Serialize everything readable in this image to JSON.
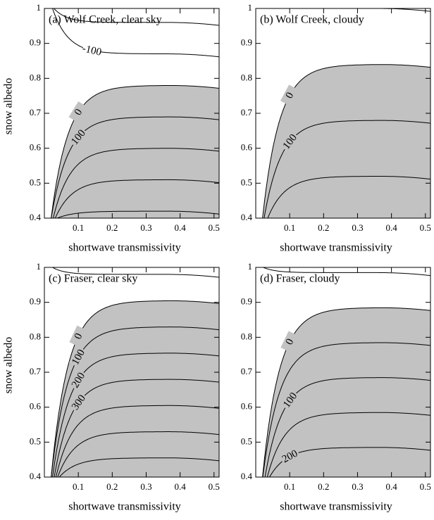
{
  "chart_data": [
    {
      "type": "contour",
      "title": "(a) Wolf Creek, clear sky",
      "x_label": "shortwave transmissivity",
      "y_label": "snow albedo",
      "xlim": [
        0,
        0.515
      ],
      "ylim": [
        0.4,
        1
      ],
      "xticks": [
        0.1,
        0.2,
        0.3,
        0.4,
        0.5
      ],
      "yticks": [
        0.4,
        0.5,
        0.6,
        0.7,
        0.8,
        0.9,
        1
      ],
      "contours": [
        -300,
        -200,
        -100,
        0,
        100,
        200,
        300,
        400
      ],
      "contour_labels": [
        -100,
        0,
        100
      ]
    },
    {
      "type": "contour",
      "title": "(b) Wolf Creek, cloudy",
      "x_label": "shortwave transmissivity",
      "xlim": [
        0,
        0.515
      ],
      "ylim": [
        0.4,
        1
      ],
      "xticks": [
        0.1,
        0.2,
        0.3,
        0.4,
        0.5
      ],
      "yticks": [
        0.4,
        0.5,
        0.6,
        0.7,
        0.8,
        0.9,
        1
      ],
      "contours": [
        -300,
        -200,
        -100,
        0,
        100,
        200,
        300
      ],
      "contour_labels": [
        0,
        100
      ]
    },
    {
      "type": "contour",
      "title": "(c) Fraser, clear sky",
      "x_label": "shortwave transmissivity",
      "y_label": "snow albedo",
      "xlim": [
        0,
        0.515
      ],
      "ylim": [
        0.4,
        1
      ],
      "xticks": [
        0.1,
        0.2,
        0.3,
        0.4,
        0.5
      ],
      "yticks": [
        0.4,
        0.5,
        0.6,
        0.7,
        0.8,
        0.9,
        1
      ],
      "contours": [
        -200,
        -100,
        0,
        100,
        200,
        300,
        400,
        500,
        600,
        700
      ],
      "contour_labels": [
        0,
        100,
        200,
        300
      ]
    },
    {
      "type": "contour",
      "title": "(d) Fraser, cloudy",
      "x_label": "shortwave transmissivity",
      "xlim": [
        0,
        0.515
      ],
      "ylim": [
        0.4,
        1
      ],
      "xticks": [
        0.1,
        0.2,
        0.3,
        0.4,
        0.5
      ],
      "yticks": [
        0.4,
        0.5,
        0.6,
        0.7,
        0.8,
        0.9,
        1
      ],
      "contours": [
        -150,
        -100,
        -50,
        0,
        50,
        100,
        150,
        200
      ],
      "contour_labels": [
        0,
        100,
        200
      ]
    }
  ]
}
